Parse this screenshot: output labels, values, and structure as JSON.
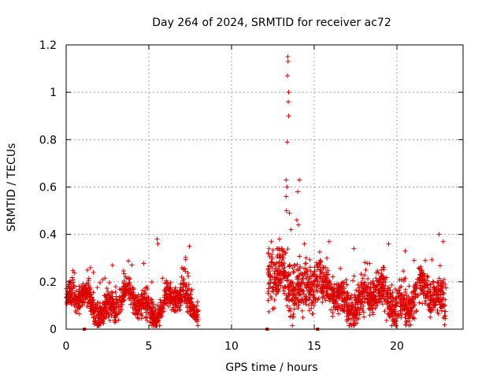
{
  "chart_data": {
    "type": "scatter",
    "title": "Day 264 of 2024, SRMTID for receiver ac72",
    "xlabel": "GPS time / hours",
    "ylabel": "SRMTID / TECUs",
    "xlim": [
      0,
      24
    ],
    "ylim": [
      0,
      1.2
    ],
    "x_ticks": [
      0,
      5,
      10,
      15,
      20
    ],
    "x_tick_labels": [
      "0",
      "5",
      "10",
      "15",
      "20"
    ],
    "y_ticks": [
      0,
      0.2,
      0.4,
      0.6,
      0.8,
      1.0,
      1.2
    ],
    "y_tick_labels": [
      "0",
      "0.2",
      "0.4",
      "0.6",
      "0.8",
      "1",
      "1.2"
    ],
    "grid": true,
    "series_color": "#dd0000",
    "marker": "plus",
    "segments": [
      {
        "x_start": 0.0,
        "x_end": 8.0,
        "base": 0.11,
        "spread": 0.05
      },
      {
        "x_start": 12.2,
        "x_end": 15.4,
        "base": 0.2,
        "spread": 0.1
      },
      {
        "x_start": 15.4,
        "x_end": 23.0,
        "base": 0.13,
        "spread": 0.07
      }
    ],
    "peaks": [
      {
        "x": 13.4,
        "y": 1.15
      },
      {
        "x": 13.42,
        "y": 1.13
      },
      {
        "x": 13.38,
        "y": 1.07
      },
      {
        "x": 13.45,
        "y": 1.0
      },
      {
        "x": 13.43,
        "y": 0.96
      },
      {
        "x": 13.45,
        "y": 0.9
      },
      {
        "x": 13.37,
        "y": 0.79
      },
      {
        "x": 13.3,
        "y": 0.63
      },
      {
        "x": 13.35,
        "y": 0.6
      },
      {
        "x": 13.3,
        "y": 0.56
      },
      {
        "x": 14.1,
        "y": 0.63
      },
      {
        "x": 14.0,
        "y": 0.58
      },
      {
        "x": 13.32,
        "y": 0.5
      },
      {
        "x": 13.5,
        "y": 0.49
      },
      {
        "x": 13.95,
        "y": 0.46
      },
      {
        "x": 14.05,
        "y": 0.44
      },
      {
        "x": 13.6,
        "y": 0.42
      },
      {
        "x": 5.5,
        "y": 0.38
      },
      {
        "x": 5.55,
        "y": 0.36
      },
      {
        "x": 7.45,
        "y": 0.35
      },
      {
        "x": 22.55,
        "y": 0.4
      },
      {
        "x": 22.8,
        "y": 0.37
      },
      {
        "x": 19.5,
        "y": 0.36
      },
      {
        "x": 15.9,
        "y": 0.37
      },
      {
        "x": 17.4,
        "y": 0.34
      },
      {
        "x": 12.4,
        "y": 0.37
      },
      {
        "x": 12.9,
        "y": 0.38
      },
      {
        "x": 14.4,
        "y": 0.36
      },
      {
        "x": 2.8,
        "y": 0.27
      },
      {
        "x": 20.5,
        "y": 0.33
      }
    ],
    "zero_markers": [
      1.1,
      12.15,
      15.2
    ]
  }
}
